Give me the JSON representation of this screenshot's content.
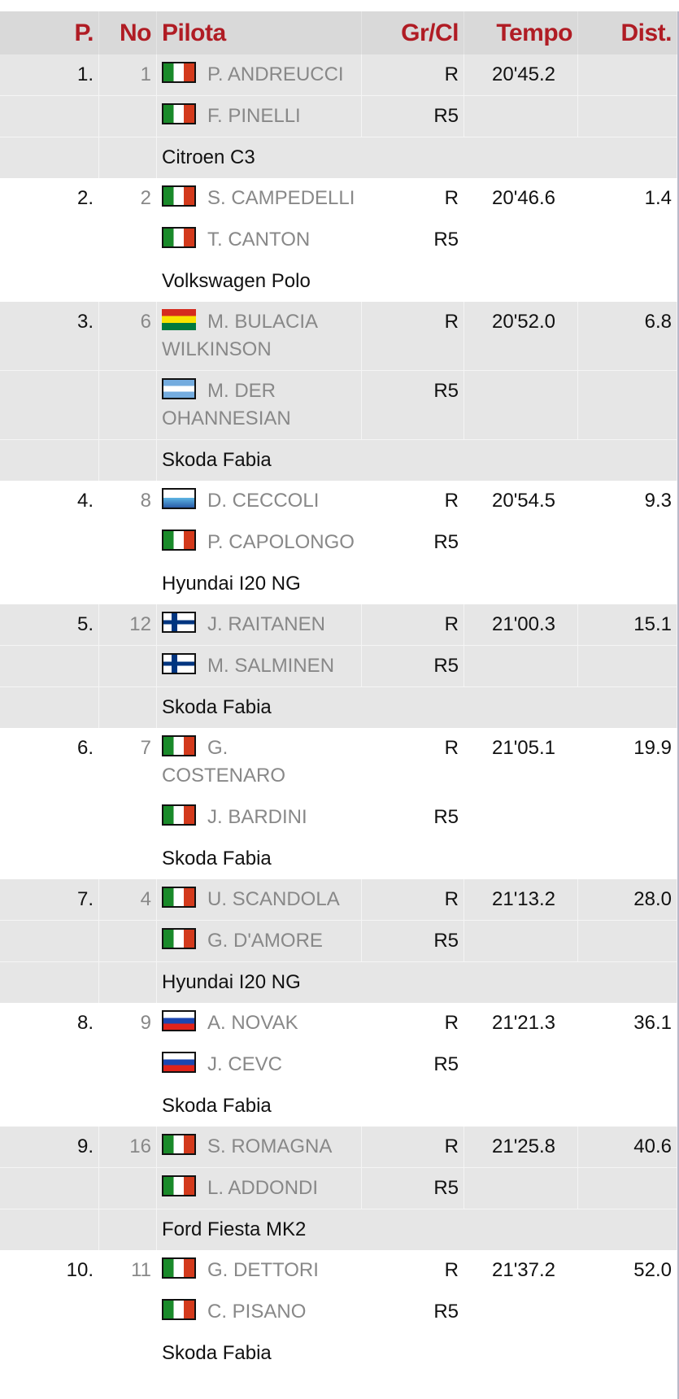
{
  "header": {
    "pos": "P.",
    "no": "No",
    "pilota": "Pilota",
    "grcl": "Gr/Cl",
    "tempo": "Tempo",
    "dist": "Dist."
  },
  "entries": [
    {
      "pos": "1.",
      "no": "1",
      "driver": {
        "flag": "italy",
        "name": "P. ANDREUCCI"
      },
      "codriver": {
        "flag": "italy",
        "name": "F. PINELLI"
      },
      "group": "R",
      "class": "R5",
      "time": "20'45.2",
      "dist": "",
      "car": "Citroen C3"
    },
    {
      "pos": "2.",
      "no": "2",
      "driver": {
        "flag": "italy",
        "name": "S. CAMPEDELLI"
      },
      "codriver": {
        "flag": "italy",
        "name": "T. CANTON"
      },
      "group": "R",
      "class": "R5",
      "time": "20'46.6",
      "dist": "1.4",
      "car": "Volkswagen Polo"
    },
    {
      "pos": "3.",
      "no": "6",
      "driver": {
        "flag": "bolivia",
        "name": "M. BULACIA WILKINSON"
      },
      "codriver": {
        "flag": "argentina",
        "name": "M. DER OHANNESIAN"
      },
      "group": "R",
      "class": "R5",
      "time": "20'52.0",
      "dist": "6.8",
      "car": "Skoda Fabia"
    },
    {
      "pos": "4.",
      "no": "8",
      "driver": {
        "flag": "san-marino",
        "name": "D. CECCOLI"
      },
      "codriver": {
        "flag": "italy",
        "name": "P. CAPOLONGO"
      },
      "group": "R",
      "class": "R5",
      "time": "20'54.5",
      "dist": "9.3",
      "car": "Hyundai I20 NG"
    },
    {
      "pos": "5.",
      "no": "12",
      "driver": {
        "flag": "finland",
        "name": "J. RAITANEN"
      },
      "codriver": {
        "flag": "finland",
        "name": "M. SALMINEN"
      },
      "group": "R",
      "class": "R5",
      "time": "21'00.3",
      "dist": "15.1",
      "car": "Skoda Fabia"
    },
    {
      "pos": "6.",
      "no": "7",
      "driver": {
        "flag": "italy",
        "name": "G. COSTENARO"
      },
      "codriver": {
        "flag": "italy",
        "name": "J. BARDINI"
      },
      "group": "R",
      "class": "R5",
      "time": "21'05.1",
      "dist": "19.9",
      "car": "Skoda Fabia"
    },
    {
      "pos": "7.",
      "no": "4",
      "driver": {
        "flag": "italy",
        "name": "U. SCANDOLA"
      },
      "codriver": {
        "flag": "italy",
        "name": "G. D'AMORE"
      },
      "group": "R",
      "class": "R5",
      "time": "21'13.2",
      "dist": "28.0",
      "car": "Hyundai I20 NG"
    },
    {
      "pos": "8.",
      "no": "9",
      "driver": {
        "flag": "slovenia",
        "name": "A. NOVAK"
      },
      "codriver": {
        "flag": "slovenia",
        "name": "J. CEVC"
      },
      "group": "R",
      "class": "R5",
      "time": "21'21.3",
      "dist": "36.1",
      "car": "Skoda Fabia"
    },
    {
      "pos": "9.",
      "no": "16",
      "driver": {
        "flag": "italy",
        "name": "S. ROMAGNA"
      },
      "codriver": {
        "flag": "italy",
        "name": "L. ADDONDI"
      },
      "group": "R",
      "class": "R5",
      "time": "21'25.8",
      "dist": "40.6",
      "car": "Ford Fiesta MK2"
    },
    {
      "pos": "10.",
      "no": "11",
      "driver": {
        "flag": "italy",
        "name": "G. DETTORI"
      },
      "codriver": {
        "flag": "italy",
        "name": "C. PISANO"
      },
      "group": "R",
      "class": "R5",
      "time": "21'37.2",
      "dist": "52.0",
      "car": "Skoda Fabia"
    }
  ]
}
